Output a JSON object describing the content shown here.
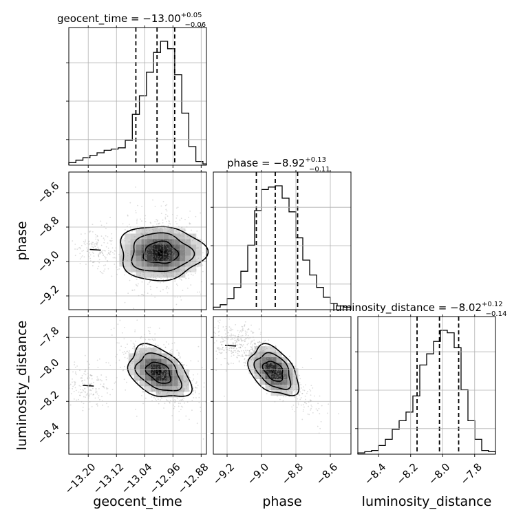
{
  "chart_data": {
    "type": "corner",
    "parameters": [
      "geocent_time",
      "phase",
      "luminosity_distance"
    ],
    "axis_labels": {
      "x": [
        "geocent_time",
        "phase",
        "luminosity_distance"
      ],
      "y": [
        "phase",
        "luminosity_distance"
      ]
    },
    "ranges": {
      "geocent_time": [
        -13.255,
        -12.865
      ],
      "phase": [
        -9.28,
        -8.48
      ],
      "luminosity_distance": [
        -8.53,
        -7.67
      ]
    },
    "ticks": {
      "geocent_time": {
        "values": [
          -13.2,
          -13.12,
          -13.04,
          -12.96,
          -12.88
        ],
        "labels": [
          "−13.20",
          "−13.12",
          "−13.04",
          "−12.96",
          "−12.88"
        ]
      },
      "phase": {
        "values": [
          -9.2,
          -9.0,
          -8.8,
          -8.6
        ],
        "labels": [
          "−9.2",
          "−9.0",
          "−8.8",
          "−8.6"
        ]
      },
      "luminosity_distance": {
        "values": [
          -8.4,
          -8.2,
          -8.0,
          -7.8
        ],
        "labels": [
          "−8.4",
          "−8.2",
          "−8.0",
          "−7.8"
        ]
      }
    },
    "titles": [
      {
        "param": "geocent_time",
        "text": "geocent_time = −13.00",
        "plus": "+0.05",
        "minus": "−0.06"
      },
      {
        "param": "phase",
        "text": "phase = −8.92",
        "plus": "+0.13",
        "minus": "−0.11"
      },
      {
        "param": "luminosity_distance",
        "text": "luminosity_distance = −8.02",
        "plus": "+0.12",
        "minus": "−0.14"
      }
    ],
    "quantiles": {
      "geocent_time": [
        -13.065,
        -13.005,
        -12.955
      ],
      "phase": [
        -9.03,
        -8.92,
        -8.79
      ],
      "luminosity_distance": [
        -8.16,
        -8.02,
        -7.9
      ]
    },
    "histograms": {
      "geocent_time": {
        "edges": [
          -13.255,
          -13.235,
          -13.215,
          -13.195,
          -13.175,
          -13.155,
          -13.135,
          -13.115,
          -13.095,
          -13.075,
          -13.055,
          -13.035,
          -13.015,
          -12.995,
          -12.975,
          -12.955,
          -12.935,
          -12.915,
          -12.895,
          -12.875,
          -12.865
        ],
        "counts": [
          2,
          4,
          6,
          8,
          10,
          12,
          13,
          14,
          20,
          41,
          56,
          75,
          91,
          100,
          94,
          73,
          42,
          15,
          3,
          1
        ]
      },
      "phase": {
        "edges": [
          -9.28,
          -9.24,
          -9.2,
          -9.16,
          -9.12,
          -9.08,
          -9.04,
          -9.0,
          -8.96,
          -8.92,
          -8.88,
          -8.84,
          -8.8,
          -8.76,
          -8.72,
          -8.68,
          -8.64,
          -8.6,
          -8.56,
          -8.52,
          -8.48
        ],
        "counts": [
          2,
          4,
          9,
          18,
          31,
          52,
          80,
          97,
          99,
          100,
          90,
          79,
          58,
          40,
          28,
          18,
          10,
          5,
          3,
          2
        ]
      },
      "luminosity_distance": {
        "edges": [
          -8.53,
          -8.487,
          -8.444,
          -8.401,
          -8.358,
          -8.315,
          -8.272,
          -8.229,
          -8.186,
          -8.143,
          -8.1,
          -8.057,
          -8.014,
          -7.971,
          -7.928,
          -7.885,
          -7.842,
          -7.799,
          -7.756,
          -7.713,
          -7.67
        ],
        "counts": [
          1,
          2,
          3,
          7,
          12,
          20,
          27,
          34,
          47,
          72,
          81,
          91,
          100,
          98,
          86,
          52,
          27,
          12,
          3,
          2
        ]
      }
    },
    "pairs": [
      {
        "x": "geocent_time",
        "y": "phase",
        "center": [
          -12.995,
          -8.95
        ],
        "corr": 0.0,
        "tail": [
          -13.18,
          -8.93
        ]
      },
      {
        "x": "geocent_time",
        "y": "luminosity_distance",
        "center": [
          -13.0,
          -8.02
        ],
        "corr": -0.55,
        "tail": [
          -13.2,
          -8.1
        ]
      },
      {
        "x": "phase",
        "y": "luminosity_distance",
        "center": [
          -8.93,
          -8.01
        ],
        "corr": -0.85,
        "tail": [
          -9.18,
          -7.85
        ]
      }
    ],
    "grid": true
  }
}
